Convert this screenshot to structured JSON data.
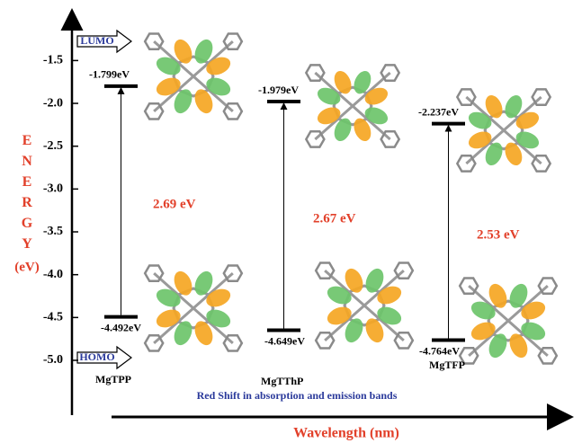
{
  "chart_data": {
    "type": "energy-levels",
    "ylabel": "ENERGY",
    "ylabel_unit": "(eV)",
    "xlabel": "Wavelength (nm)",
    "annotation": "Red Shift in absorption and emission bands",
    "lumo_label": "LUMO",
    "homo_label": "HOMO",
    "ylim": [
      -5.64,
      -0.94
    ],
    "yticks": [
      -1.5,
      {
        "value": -2,
        "label": "-2.0"
      },
      -2.5,
      {
        "value": -3,
        "label": "-3.0"
      },
      -3.5,
      {
        "value": -4,
        "label": "-4.0"
      },
      -4.5,
      {
        "value": -5,
        "label": "-5.0"
      }
    ],
    "compounds": [
      {
        "name": "MgTPP",
        "lumo": -1.799,
        "lumo_label": "-1.799eV",
        "homo": -4.492,
        "homo_label": "-4.492eV",
        "gap": 2.69,
        "gap_label": "2.69 eV"
      },
      {
        "name": "MgTThP",
        "lumo": -1.979,
        "lumo_label": "-1.979eV",
        "homo": -4.649,
        "homo_label": "-4.649eV",
        "gap": 2.67,
        "gap_label": "2.67 eV"
      },
      {
        "name": "MgTFP",
        "lumo": -2.237,
        "lumo_label": "-2.237eV",
        "homo": -4.764,
        "homo_label": "-4.764eV",
        "gap": 2.53,
        "gap_label": "2.53 eV"
      }
    ]
  }
}
